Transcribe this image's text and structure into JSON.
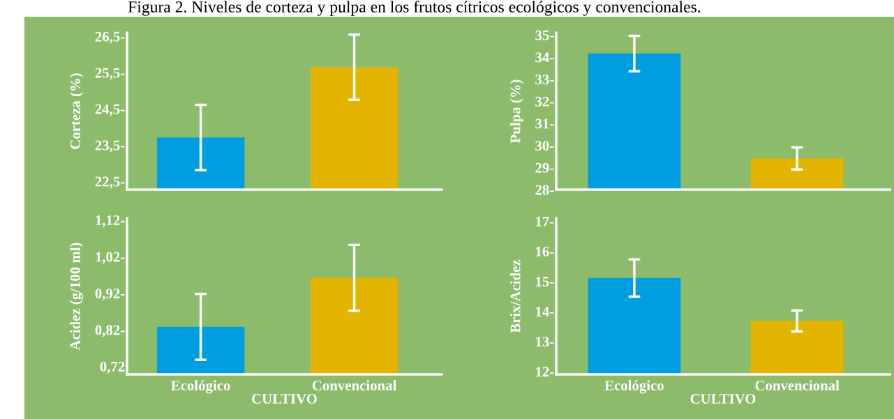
{
  "chart_data": [
    {
      "type": "bar",
      "title": "Figura 2. Niveles de corteza y pulpa en los frutos cítricos ecológicos y convencionales.",
      "ylabel": "Corteza (%)",
      "categories": [
        null,
        null
      ],
      "values": [
        23.71,
        25.65
      ],
      "errors": [
        0.9,
        0.9
      ],
      "colors": [
        "#009ee0",
        "#e3b500"
      ],
      "ylim": [
        22.27,
        26.6
      ],
      "yticks": [
        {
          "value": 22.5,
          "label": "22,5-"
        },
        {
          "value": 23.5,
          "label": "23,5-"
        },
        {
          "value": 24.5,
          "label": "24,5-"
        },
        {
          "value": 25.5,
          "label": "25,5-"
        },
        {
          "value": 26.5,
          "label": "26,5-"
        }
      ],
      "tick_labels": "y",
      "grid": false
    },
    {
      "type": "bar",
      "ylabel": "Pulpa (%)",
      "categories": [
        null,
        null
      ],
      "values": [
        34.16,
        29.41
      ],
      "errors": [
        0.8,
        0.5
      ],
      "colors": [
        "#009ee0",
        "#e3b500"
      ],
      "ylim": [
        28,
        35.1
      ],
      "yticks": [
        {
          "value": 28,
          "label": "28-"
        },
        {
          "value": 29,
          "label": "29-"
        },
        {
          "value": 30,
          "label": "30-"
        },
        {
          "value": 31,
          "label": "31-"
        },
        {
          "value": 32,
          "label": "32-"
        },
        {
          "value": 33,
          "label": "33-"
        },
        {
          "value": 34,
          "label": "34-"
        },
        {
          "value": 35,
          "label": "35-"
        }
      ],
      "tick_labels": "y",
      "grid": false
    },
    {
      "type": "bar",
      "xlabel": "CULTIVO",
      "ylabel": "Acidez (g/100 ml)",
      "categories": [
        "Ecológico",
        "Convencional"
      ],
      "values": [
        0.828,
        0.962
      ],
      "errors": [
        0.09,
        0.09
      ],
      "colors": [
        "#009ee0",
        "#e3b500"
      ],
      "ylim": [
        0.698,
        1.125
      ],
      "yticks": [
        {
          "value": 0.72,
          "label": "0,72"
        },
        {
          "value": 0.82,
          "label": "0,82-"
        },
        {
          "value": 0.92,
          "label": "0,92-"
        },
        {
          "value": 1.02,
          "label": "1,02-"
        },
        {
          "value": 1.12,
          "label": "1,12-"
        }
      ],
      "grid": false
    },
    {
      "type": "bar",
      "xlabel": "CULTIVO",
      "ylabel": "Brix/Acidez",
      "categories": [
        "Ecológico",
        "Convencional"
      ],
      "values": [
        15.11,
        13.68
      ],
      "errors": [
        0.62,
        0.35
      ],
      "colors": [
        "#009ee0",
        "#e3b500"
      ],
      "ylim": [
        11.9,
        17.1
      ],
      "yticks": [
        {
          "value": 12,
          "label": "12-"
        },
        {
          "value": 13,
          "label": "13-"
        },
        {
          "value": 14,
          "label": "14-"
        },
        {
          "value": 15,
          "label": "15-"
        },
        {
          "value": 16,
          "label": "16-"
        },
        {
          "value": 17,
          "label": "17-"
        }
      ],
      "grid": false
    }
  ]
}
